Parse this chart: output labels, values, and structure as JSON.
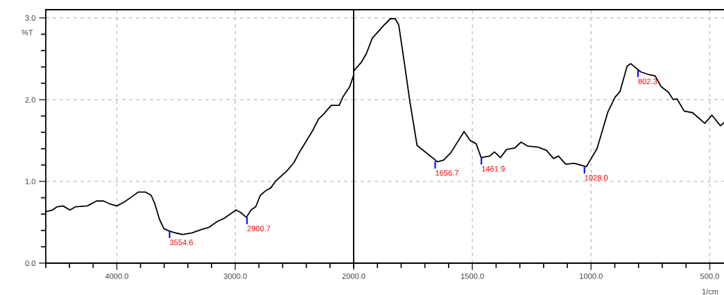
{
  "chart_data": [
    {
      "type": "line",
      "ylabel": "%T",
      "x": [
        4600,
        4543,
        4504,
        4455,
        4396,
        4347,
        4249,
        4171,
        4112,
        4053,
        4000,
        3935,
        3876,
        3818,
        3759,
        3710,
        3680,
        3641,
        3602,
        3553,
        3504,
        3445,
        3367,
        3288,
        3220,
        3151,
        3092,
        3033,
        2994,
        2955,
        2906,
        2867,
        2827,
        2788,
        2739,
        2700,
        2661,
        2563,
        2504,
        2465,
        2406,
        2347,
        2298,
        2249,
        2190,
        2122,
        2092,
        2033,
        2000
      ],
      "series": [
        {
          "color": "#000000",
          "values": [
            0.63,
            0.65,
            0.69,
            0.7,
            0.65,
            0.69,
            0.7,
            0.76,
            0.76,
            0.72,
            0.7,
            0.75,
            0.81,
            0.87,
            0.87,
            0.83,
            0.73,
            0.54,
            0.42,
            0.39,
            0.37,
            0.35,
            0.37,
            0.41,
            0.44,
            0.51,
            0.55,
            0.61,
            0.65,
            0.62,
            0.56,
            0.65,
            0.69,
            0.83,
            0.89,
            0.92,
            1.0,
            1.13,
            1.23,
            1.34,
            1.48,
            1.62,
            1.76,
            1.83,
            1.93,
            1.93,
            2.03,
            2.16,
            2.3
          ]
        }
      ],
      "xlim": [
        4600,
        2000
      ],
      "xticks": [
        {
          "value": 4600,
          "label": null
        },
        {
          "value": 4400,
          "label": null
        },
        {
          "value": 4200,
          "label": null
        },
        {
          "value": 4000,
          "label": "4000.0"
        },
        {
          "value": 3800,
          "label": null
        },
        {
          "value": 3600,
          "label": null
        },
        {
          "value": 3400,
          "label": null
        },
        {
          "value": 3200,
          "label": null
        },
        {
          "value": 3000,
          "label": "3000.0"
        },
        {
          "value": 2800,
          "label": null
        },
        {
          "value": 2600,
          "label": null
        },
        {
          "value": 2400,
          "label": null
        },
        {
          "value": 2200,
          "label": null
        },
        {
          "value": 2000,
          "label": "2000.0"
        }
      ],
      "ylim": [
        0,
        3.1
      ],
      "yticks": [
        {
          "value": 0,
          "label": "0.0"
        },
        {
          "value": 0.2,
          "label": null
        },
        {
          "value": 0.4,
          "label": null
        },
        {
          "value": 0.6,
          "label": null
        },
        {
          "value": 0.8,
          "label": null
        },
        {
          "value": 1,
          "label": "1.0"
        },
        {
          "value": 1.2,
          "label": null
        },
        {
          "value": 1.4,
          "label": null
        },
        {
          "value": 1.6,
          "label": null
        },
        {
          "value": 1.8,
          "label": null
        },
        {
          "value": 2,
          "label": "2.0"
        },
        {
          "value": 2.2,
          "label": null
        },
        {
          "value": 2.4,
          "label": null
        },
        {
          "value": 2.6,
          "label": null
        },
        {
          "value": 2.8,
          "label": null
        },
        {
          "value": 3,
          "label": "3.0"
        }
      ],
      "grid": true,
      "marker": "none",
      "line_style": "solid",
      "annotations": [
        {
          "text": "3554.6",
          "x": 3554.6,
          "y": 0.39
        },
        {
          "text": "2900.7",
          "x": 2900.7,
          "y": 0.56
        }
      ]
    },
    {
      "type": "line",
      "xlabel": "1/cm",
      "x": [
        2000,
        1967,
        1947,
        1922,
        1876,
        1845,
        1825,
        1810,
        1784,
        1764,
        1733,
        1703,
        1647,
        1621,
        1591,
        1535,
        1509,
        1484,
        1463,
        1428,
        1407,
        1382,
        1356,
        1321,
        1295,
        1265,
        1224,
        1188,
        1158,
        1137,
        1107,
        1071,
        1020,
        975,
        929,
        899,
        878,
        848,
        833,
        791,
        761,
        730,
        705,
        674,
        654,
        638,
        608,
        572,
        521,
        491,
        455,
        440
      ],
      "series": [
        {
          "color": "#000000",
          "values": [
            2.35,
            2.46,
            2.56,
            2.75,
            2.9,
            2.99,
            2.99,
            2.91,
            2.4,
            1.99,
            1.44,
            1.37,
            1.24,
            1.26,
            1.35,
            1.61,
            1.5,
            1.46,
            1.29,
            1.31,
            1.36,
            1.29,
            1.39,
            1.41,
            1.48,
            1.43,
            1.42,
            1.38,
            1.28,
            1.31,
            1.21,
            1.22,
            1.18,
            1.4,
            1.85,
            2.03,
            2.1,
            2.41,
            2.44,
            2.34,
            2.31,
            2.29,
            2.16,
            2.09,
            2.0,
            2.01,
            1.86,
            1.84,
            1.71,
            1.81,
            1.68,
            1.72
          ]
        }
      ],
      "xlim": [
        2000,
        440
      ],
      "xticks": [
        {
          "value": 2000,
          "label": null
        },
        {
          "value": 1900,
          "label": null
        },
        {
          "value": 1800,
          "label": null
        },
        {
          "value": 1700,
          "label": null
        },
        {
          "value": 1600,
          "label": null
        },
        {
          "value": 1500,
          "label": "1500.0"
        },
        {
          "value": 1400,
          "label": null
        },
        {
          "value": 1300,
          "label": null
        },
        {
          "value": 1200,
          "label": null
        },
        {
          "value": 1100,
          "label": null
        },
        {
          "value": 1000,
          "label": "1000.0"
        },
        {
          "value": 900,
          "label": null
        },
        {
          "value": 800,
          "label": null
        },
        {
          "value": 700,
          "label": null
        },
        {
          "value": 600,
          "label": null
        },
        {
          "value": 500,
          "label": "500.0"
        }
      ],
      "ylim": [
        0,
        3.1
      ],
      "yticks": [
        0,
        1,
        2,
        3
      ],
      "tick_labels": "x",
      "grid": true,
      "marker": "none",
      "line_style": "solid",
      "annotations": [
        {
          "text": "1656.7",
          "x": 1656.7,
          "y": 1.24
        },
        {
          "text": "1461.9",
          "x": 1461.9,
          "y": 1.29
        },
        {
          "text": "1028.0",
          "x": 1028.0,
          "y": 1.18
        },
        {
          "text": "802.3",
          "x": 802.3,
          "y": 2.36
        }
      ]
    }
  ]
}
